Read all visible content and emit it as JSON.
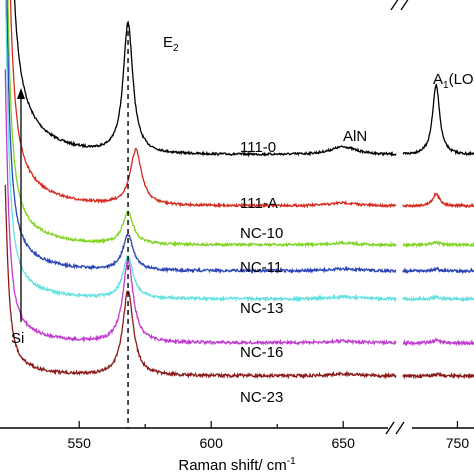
{
  "chart_data": {
    "type": "line",
    "title": "",
    "xlabel": "Raman shift/ cm",
    "xlabel_sup": "-1",
    "ylabel": "",
    "x_axis_break": true,
    "xlim_left": [
      520,
      670
    ],
    "xlim_right": [
      727,
      757
    ],
    "xticks": [
      550,
      575,
      600,
      625,
      650,
      750
    ],
    "xtick_labels": [
      "550",
      "",
      "600",
      "",
      "650",
      "750"
    ],
    "annotations": {
      "e2": "E",
      "e2_sub": "2",
      "a1": "A",
      "a1_sub": "1",
      "a1_rest": "(LO)",
      "aln": "AlN",
      "si": "Si"
    },
    "peak_marker_x": 568.5,
    "series": [
      {
        "name": "111-0",
        "color": "#000000",
        "base": 0,
        "e2_pos": 568.5,
        "e2_amp": 130,
        "e2_width": 2.2,
        "a1_amp": 70,
        "aln_amp": 8,
        "si_amp": 3.0
      },
      {
        "name": "111-A",
        "color": "#d62a1e",
        "base": -51,
        "e2_pos": 571.5,
        "e2_amp": 55,
        "e2_width": 2.6,
        "a1_amp": 12,
        "aln_amp": 3,
        "si_amp": 2.2
      },
      {
        "name": "NC-10",
        "color": "#7fd321",
        "base": -90,
        "e2_pos": 568.5,
        "e2_amp": 32,
        "e2_width": 2.4,
        "a1_amp": 3,
        "aln_amp": 2,
        "si_amp": 1.6
      },
      {
        "name": "NC-11",
        "color": "#2a44b8",
        "base": -116,
        "e2_pos": 568.5,
        "e2_amp": 35,
        "e2_width": 2.4,
        "a1_amp": 2,
        "aln_amp": 2,
        "si_amp": 1.4
      },
      {
        "name": "NC-13",
        "color": "#63e0e0",
        "base": -144,
        "e2_pos": 568.5,
        "e2_amp": 41,
        "e2_width": 2.4,
        "a1_amp": 2,
        "aln_amp": 2,
        "si_amp": 1.2
      },
      {
        "name": "NC-16",
        "color": "#c13ad0",
        "base": -188,
        "e2_pos": 568.5,
        "e2_amp": 81,
        "e2_width": 2.4,
        "a1_amp": 3,
        "aln_amp": 2,
        "si_amp": 1.0
      },
      {
        "name": "NC-23",
        "color": "#8b1a1a",
        "base": -221,
        "e2_pos": 568.5,
        "e2_amp": 85,
        "e2_width": 2.4,
        "a1_amp": 2,
        "aln_amp": 2,
        "si_amp": 0.7
      }
    ]
  }
}
